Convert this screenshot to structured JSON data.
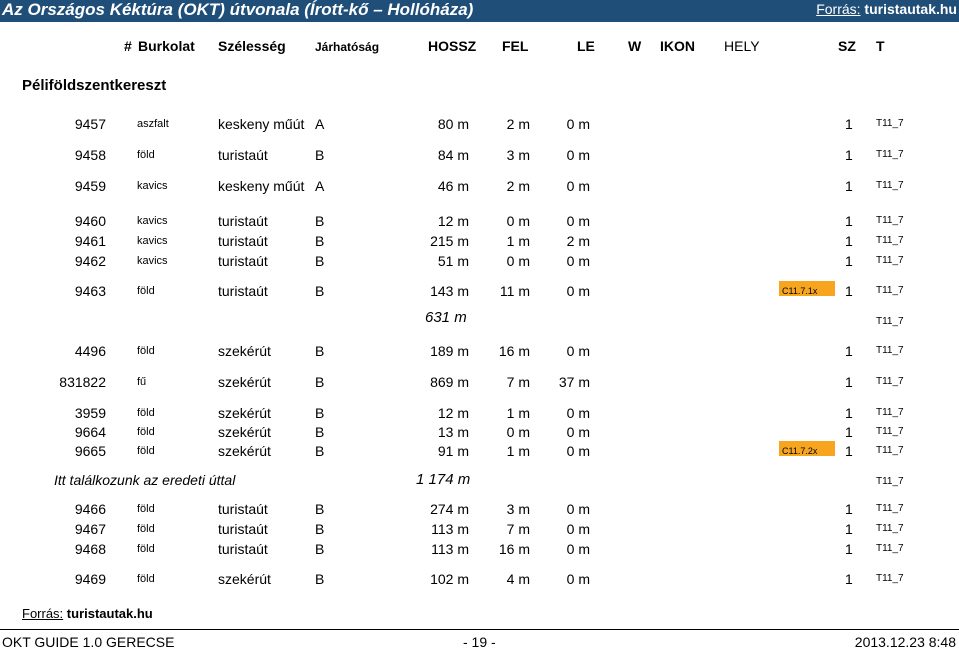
{
  "title": "Az Országos Kéktúra (OKT) útvonala (Írott-kő – Hollóháza)",
  "source_top": {
    "label": "Forrás:",
    "value": "turistautak.hu"
  },
  "headers": {
    "hash": "#",
    "surface": "Burkolat",
    "width": "Szélesség",
    "passability": "Járhatóság",
    "length": "HOSSZ",
    "up": "FEL",
    "down": "LE",
    "w": "W",
    "icon": "IKON",
    "place": "HELY",
    "sz": "SZ",
    "t": "T"
  },
  "section": "Péliföldszentkereszt",
  "rows": [
    {
      "id": "9457",
      "surface": "aszfalt",
      "width": "keskeny műút",
      "pass": "A",
      "len": "80 m",
      "up": "2 m",
      "down": "0 m",
      "tag": "",
      "sz": "1",
      "t": "T11_7"
    },
    {
      "id": "9458",
      "surface": "föld",
      "width": "turistaút",
      "pass": "B",
      "len": "84 m",
      "up": "3 m",
      "down": "0 m",
      "tag": "",
      "sz": "1",
      "t": "T11_7"
    },
    {
      "id": "9459",
      "surface": "kavics",
      "width": "keskeny műút",
      "pass": "A",
      "len": "46 m",
      "up": "2 m",
      "down": "0 m",
      "tag": "",
      "sz": "1",
      "t": "T11_7"
    },
    {
      "id": "9460",
      "surface": "kavics",
      "width": "turistaút",
      "pass": "B",
      "len": "12 m",
      "up": "0 m",
      "down": "0 m",
      "tag": "",
      "sz": "1",
      "t": "T11_7"
    },
    {
      "id": "9461",
      "surface": "kavics",
      "width": "turistaút",
      "pass": "B",
      "len": "215 m",
      "up": "1 m",
      "down": "2 m",
      "tag": "",
      "sz": "1",
      "t": "T11_7"
    },
    {
      "id": "9462",
      "surface": "kavics",
      "width": "turistaút",
      "pass": "B",
      "len": "51 m",
      "up": "0 m",
      "down": "0 m",
      "tag": "",
      "sz": "1",
      "t": "T11_7"
    },
    {
      "id": "9463",
      "surface": "föld",
      "width": "turistaút",
      "pass": "B",
      "len": "143 m",
      "up": "11 m",
      "down": "0 m",
      "tag": "C11.7.1x",
      "sz": "1",
      "t": "T11_7"
    },
    {
      "id": "4496",
      "surface": "föld",
      "width": "szekérút",
      "pass": "B",
      "len": "189 m",
      "up": "16 m",
      "down": "0 m",
      "tag": "",
      "sz": "1",
      "t": "T11_7"
    },
    {
      "id": "831822",
      "surface": "fű",
      "width": "szekérút",
      "pass": "B",
      "len": "869 m",
      "up": "7 m",
      "down": "37 m",
      "tag": "",
      "sz": "1",
      "t": "T11_7"
    },
    {
      "id": "3959",
      "surface": "föld",
      "width": "szekérút",
      "pass": "B",
      "len": "12 m",
      "up": "1 m",
      "down": "0 m",
      "tag": "",
      "sz": "1",
      "t": "T11_7"
    },
    {
      "id": "9664",
      "surface": "föld",
      "width": "szekérút",
      "pass": "B",
      "len": "13 m",
      "up": "0 m",
      "down": "0 m",
      "tag": "",
      "sz": "1",
      "t": "T11_7"
    },
    {
      "id": "9665",
      "surface": "föld",
      "width": "szekérút",
      "pass": "B",
      "len": "91 m",
      "up": "1 m",
      "down": "0 m",
      "tag": "C11.7.2x",
      "sz": "1",
      "t": "T11_7"
    },
    {
      "id": "9466",
      "surface": "föld",
      "width": "turistaút",
      "pass": "B",
      "len": "274 m",
      "up": "3 m",
      "down": "0 m",
      "tag": "",
      "sz": "1",
      "t": "T11_7"
    },
    {
      "id": "9467",
      "surface": "föld",
      "width": "turistaút",
      "pass": "B",
      "len": "113 m",
      "up": "7 m",
      "down": "0 m",
      "tag": "",
      "sz": "1",
      "t": "T11_7"
    },
    {
      "id": "9468",
      "surface": "föld",
      "width": "turistaút",
      "pass": "B",
      "len": "113 m",
      "up": "16 m",
      "down": "0 m",
      "tag": "",
      "sz": "1",
      "t": "T11_7"
    },
    {
      "id": "9469",
      "surface": "föld",
      "width": "szekérút",
      "pass": "B",
      "len": "102 m",
      "up": "4 m",
      "down": "0 m",
      "tag": "",
      "sz": "1",
      "t": "T11_7"
    }
  ],
  "subtotal1": {
    "value": "631 m",
    "t": "T11_7"
  },
  "subtotal2": {
    "note": "Itt találkozunk az eredeti úttal",
    "value": "1 174 m",
    "t": "T11_7"
  },
  "source_bottom": {
    "label": "Forrás:",
    "value": "turistautak.hu"
  },
  "footer": {
    "left": "OKT GUIDE 1.0  GERECSE",
    "center": "- 19 -",
    "right": "2013.12.23  8:48"
  },
  "colors": {
    "title_bg": "#1f4e79",
    "tag_bg": "#f7a51f"
  }
}
